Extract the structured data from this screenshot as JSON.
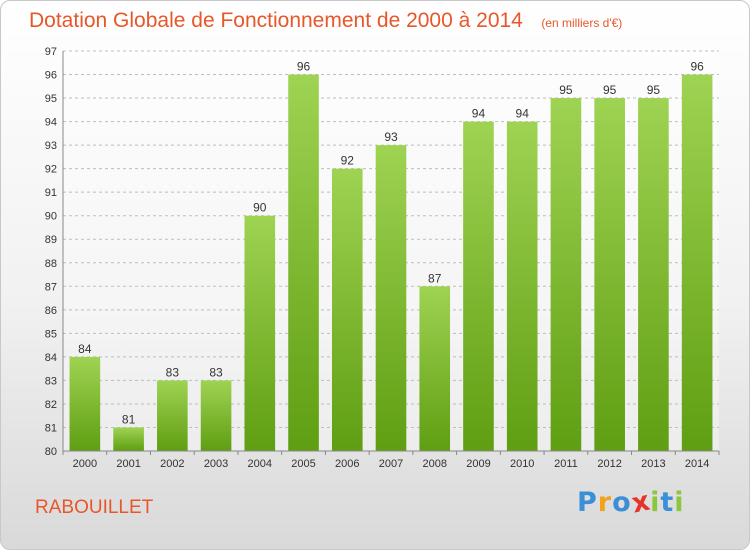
{
  "header": {
    "title": "Dotation Globale de Fonctionnement de 2000 à 2014",
    "subtitle": "(en milliers d'€)"
  },
  "footer": {
    "commune": "RABOUILLET",
    "logo_letters": [
      {
        "ch": "P",
        "color": "#3a8fd6"
      },
      {
        "ch": "r",
        "color": "#f3a21c"
      },
      {
        "ch": "o",
        "color": "#3a8fd6"
      },
      {
        "ch": "x",
        "color": "#e6342a"
      },
      {
        "ch": "i",
        "color": "#8cc63f"
      },
      {
        "ch": "t",
        "color": "#3a8fd6"
      },
      {
        "ch": "i",
        "color": "#8cc63f"
      }
    ]
  },
  "colors": {
    "bar_light": "#9fd353",
    "bar_dark": "#5f9e12",
    "title": "#e8572a"
  },
  "chart_data": {
    "type": "bar",
    "title": "Dotation Globale de Fonctionnement de 2000 à 2014",
    "subtitle": "(en milliers d'€)",
    "xlabel": "",
    "ylabel": "",
    "categories": [
      "2000",
      "2001",
      "2002",
      "2003",
      "2004",
      "2005",
      "2006",
      "2007",
      "2008",
      "2009",
      "2010",
      "2011",
      "2012",
      "2013",
      "2014"
    ],
    "values": [
      84,
      81,
      83,
      83,
      90,
      96,
      92,
      93,
      87,
      94,
      94,
      95,
      95,
      95,
      96
    ],
    "ylim": [
      80,
      97
    ],
    "yticks": [
      "80",
      "81",
      "82",
      "83",
      "84",
      "85",
      "86",
      "87",
      "88",
      "89",
      "90",
      "91",
      "92",
      "93",
      "94",
      "95",
      "96",
      "97"
    ],
    "grid": true,
    "legend": "none"
  }
}
